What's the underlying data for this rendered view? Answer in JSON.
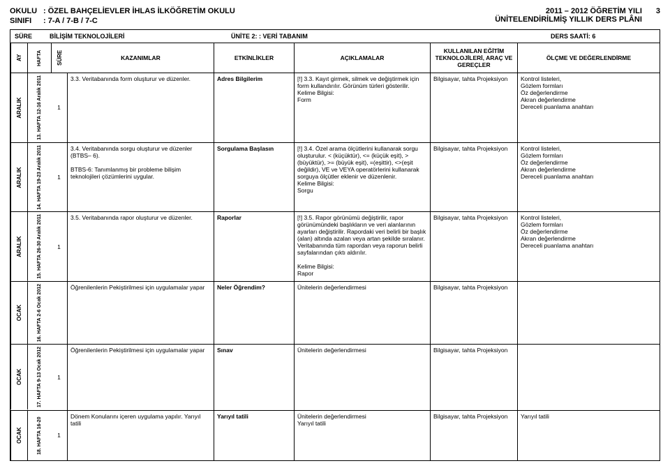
{
  "header": {
    "okulu_label": "OKULU",
    "okulu_value": ": ÖZEL BAHÇELİEVLER İHLAS İLKÖĞRETİM OKULU",
    "sinifi_label": "SINIFI",
    "sinifi_value": ": 7-A / 7-B / 7-C",
    "year": "2011 – 2012 ÖĞRETİM YILI",
    "plan": "ÜNİTELENDİRİLMİŞ YILLIK DERS PLÂNI",
    "page": "3"
  },
  "section": {
    "sure": "SÜRE",
    "course": "BİLİŞİM TEKNOLOJİLERİ",
    "unit": "ÜNİTE 2: : VERİ TABANIM",
    "hours": "DERS SAATİ: 6"
  },
  "cols": {
    "ay": "AY",
    "hafta": "HAFTA",
    "sure": "SÜRE",
    "kaz": "KAZANIMLAR",
    "etk": "ETKİNLİKLER",
    "acik": "AÇIKLAMALAR",
    "arac": "KULLANILAN EĞİTİM TEKNOLOJİLERİ, ARAÇ VE GEREÇLER",
    "olc": "ÖLÇME VE DEĞERLENDİRME"
  },
  "rows": [
    {
      "ay": "ARALIK",
      "hafta": "13. HAFTA 12-16 Aralık 2011",
      "sure": "1",
      "kaz": "3.3. Veritabanında form oluşturur ve düzenler.",
      "etk": "Adres Bilgilerim",
      "acik": "[!] 3.3. Kayıt girmek, silmek ve değiştirmek için form kullandırılır. Görünüm türleri gösterilir.\nKelime Bilgisi:\nForm",
      "arac": "Bilgisayar, tahta Projeksiyon",
      "olc": "Kontrol listeleri,\nGözlem formları\nÖz değerlendirme\nAkran değerlendirme\nDereceli puanlama anahtarı"
    },
    {
      "ay": "ARALIK",
      "hafta": "14. HAFTA 19-23 Aralık 2011",
      "sure": "1",
      "kaz": "3.4. Veritabanında sorgu oluşturur ve düzenler (BTBS– 6).\n\nBTBS-6: Tanımlanmış bir probleme bilişim teknolojileri çözümlerini uygular.",
      "etk": "Sorgulama Başlasın",
      "acik": "[!] 3.4. Özel arama ölçütlerini kullanarak sorgu oluşturulur. < (küçüktür), <= (küçük eşit), > (büyüktür), >= (büyük eşit), =(eşittir), <>(eşit değildir), VE ve VEYA operatörlerini kullanarak sorguya ölçütler eklenir ve düzenlenir.\nKelime Bilgisi:\nSorgu",
      "arac": "Bilgisayar, tahta Projeksiyon",
      "olc": "Kontrol listeleri,\nGözlem formları\nÖz değerlendirme\nAkran değerlendirme\nDereceli puanlama anahtarı"
    },
    {
      "ay": "ARALIK",
      "hafta": "15. HAFTA 26-30 Aralık 2011",
      "sure": "1",
      "kaz": "3.5. Veritabanında rapor oluşturur ve düzenler.",
      "etk": "Raporlar",
      "acik": "[!] 3.5. Rapor görünümü değiştirilir, rapor görünümündeki başlıkların ve veri alanlarının ayarları değiştirilir. Rapordaki veri belirli bir başlık (alan) altında azalan veya artan şekilde sıralanır. Veritabanında tüm rapordan veya raporun belirli sayfalarından çıktı aldırılır.\n\nKelime Bilgisi:\nRapor",
      "arac": "Bilgisayar, tahta Projeksiyon",
      "olc": "Kontrol listeleri,\nGözlem formları\nÖz değerlendirme\nAkran değerlendirme\nDereceli puanlama anahtarı"
    },
    {
      "ay": "OCAK",
      "hafta": "16. HAFTA 2-6 Ocak 2012",
      "sure": "",
      "kaz": "Öğrenilenlerin Pekiştirilmesi için uygulamalar yapar",
      "etk": "Neler Öğrendim?",
      "acik": "Ünitelerin değerlendirmesi",
      "arac": "Bilgisayar, tahta Projeksiyon",
      "olc": ""
    },
    {
      "ay": "OCAK",
      "hafta": "17. HAFTA 9-13 Ocak 2012",
      "sure": "1",
      "kaz": "Öğrenilenlerin Pekiştirilmesi için uygulamalar yapar",
      "etk": "Sınav",
      "acik": "Ünitelerin değerlendirmesi",
      "arac": "Bilgisayar, tahta Projeksiyon",
      "olc": ""
    },
    {
      "ay": "OCAK",
      "hafta": "18. HAFTA 16-20",
      "sure": "1",
      "kaz": "Dönem Konularını içeren uygulama yapılır. Yarıyıl tatili",
      "etk": "Yarıyıl tatili",
      "acik": "Ünitelerin değerlendirmesi\nYarıyıl tatili",
      "arac": "Bilgisayar, tahta Projeksiyon",
      "olc": "Yarıyıl tatili"
    }
  ]
}
